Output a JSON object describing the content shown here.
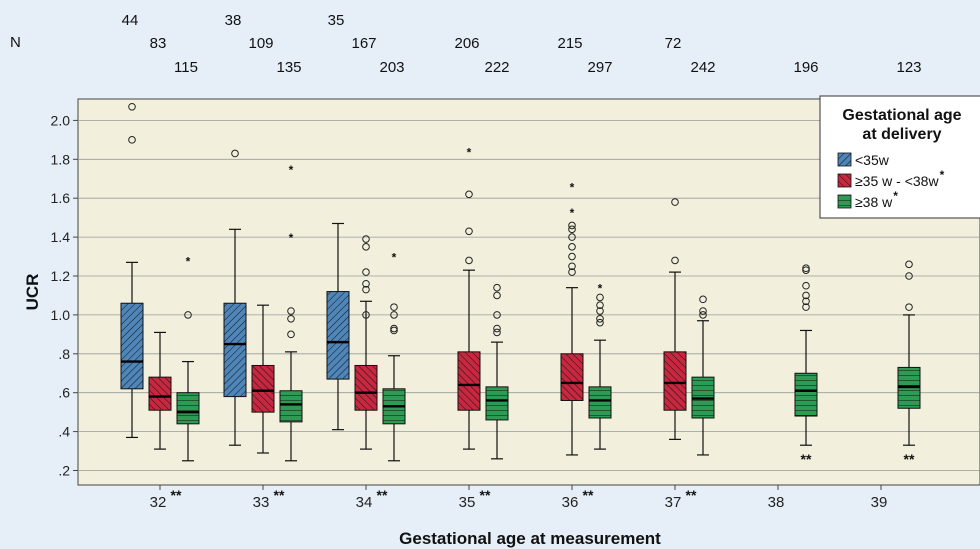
{
  "colors": {
    "page_bg": "#e6eff8",
    "plot_bg": "#f2f0dc",
    "grid": "#9a9a9a",
    "blue": "#4f86b9",
    "red": "#c8283f",
    "green": "#2e9b54"
  },
  "counts_label": "N",
  "counts": [
    {
      "week": "32",
      "values": [
        "44",
        "83",
        "115"
      ]
    },
    {
      "week": "33",
      "values": [
        "38",
        "109",
        "135"
      ]
    },
    {
      "week": "34",
      "values": [
        "35",
        "167",
        "203"
      ]
    },
    {
      "week": "35",
      "values": [
        "206",
        "222"
      ]
    },
    {
      "week": "36",
      "values": [
        "215",
        "297"
      ]
    },
    {
      "week": "37",
      "values": [
        "72",
        "242"
      ]
    },
    {
      "week": "38",
      "values": [
        "196"
      ]
    },
    {
      "week": "39",
      "values": [
        "123"
      ]
    }
  ],
  "chart_data": {
    "type": "boxplot",
    "xlabel": "Gestational age at measurement",
    "ylabel": "UCR",
    "ylim": [
      0.15,
      2.1
    ],
    "yticks": [
      {
        "v": 2.0,
        "label": "2.0"
      },
      {
        "v": 1.8,
        "label": "1.8"
      },
      {
        "v": 1.6,
        "label": "1.6"
      },
      {
        "v": 1.4,
        "label": "1.4"
      },
      {
        "v": 1.2,
        "label": "1.2"
      },
      {
        "v": 1.0,
        "label": "1.0"
      },
      {
        "v": 0.8,
        "label": ".8"
      },
      {
        "v": 0.6,
        "label": ".6"
      },
      {
        "v": 0.4,
        "label": ".4"
      },
      {
        "v": 0.2,
        "label": ".2"
      }
    ],
    "categories": [
      {
        "label": "32",
        "stars": "**"
      },
      {
        "label": "33",
        "stars": "**"
      },
      {
        "label": "34",
        "stars": "**"
      },
      {
        "label": "35",
        "stars": "**"
      },
      {
        "label": "36",
        "stars": "**"
      },
      {
        "label": "37",
        "stars": "**"
      },
      {
        "label": "38",
        "stars": ""
      },
      {
        "label": "39",
        "stars": ""
      }
    ],
    "grid": true,
    "legend": {
      "title_lines": [
        "Gestational age",
        "at delivery"
      ],
      "position": "top-right",
      "items": [
        {
          "key": "blue",
          "label": "<35w",
          "stars": ""
        },
        {
          "key": "red",
          "label": "≥35 w - <38w",
          "stars": "*"
        },
        {
          "key": "green",
          "label": "≥38 w",
          "stars": "*"
        }
      ]
    },
    "series": [
      {
        "name": "<35w",
        "key": "blue",
        "boxes": [
          {
            "cat": 0,
            "lw": 0.37,
            "q1": 0.62,
            "med": 0.76,
            "q3": 1.06,
            "uw": 1.27,
            "outliers": [
              2.07,
              1.9
            ],
            "extremes": []
          },
          {
            "cat": 1,
            "lw": 0.33,
            "q1": 0.58,
            "med": 0.85,
            "q3": 1.06,
            "uw": 1.44,
            "outliers": [
              1.83
            ],
            "extremes": []
          },
          {
            "cat": 2,
            "lw": 0.41,
            "q1": 0.67,
            "med": 0.86,
            "q3": 1.12,
            "uw": 1.47,
            "outliers": [],
            "extremes": []
          }
        ]
      },
      {
        "name": "≥35 w - <38w",
        "key": "red",
        "boxes": [
          {
            "cat": 0,
            "lw": 0.31,
            "q1": 0.51,
            "med": 0.58,
            "q3": 0.68,
            "uw": 0.91,
            "outliers": [],
            "extremes": []
          },
          {
            "cat": 1,
            "lw": 0.29,
            "q1": 0.5,
            "med": 0.61,
            "q3": 0.74,
            "uw": 1.05,
            "outliers": [],
            "extremes": []
          },
          {
            "cat": 2,
            "lw": 0.31,
            "q1": 0.51,
            "med": 0.6,
            "q3": 0.74,
            "uw": 1.07,
            "outliers": [
              1.39,
              1.35,
              1.22,
              1.16,
              1.13,
              1.0
            ],
            "extremes": []
          },
          {
            "cat": 3,
            "lw": 0.31,
            "q1": 0.51,
            "med": 0.64,
            "q3": 0.81,
            "uw": 1.23,
            "outliers": [
              1.62,
              1.43,
              1.28
            ],
            "extremes": [
              1.85
            ]
          },
          {
            "cat": 4,
            "lw": 0.28,
            "q1": 0.56,
            "med": 0.65,
            "q3": 0.8,
            "uw": 1.14,
            "outliers": [
              1.46,
              1.44,
              1.4,
              1.35,
              1.3,
              1.25,
              1.22
            ],
            "extremes": [
              1.67,
              1.54
            ]
          },
          {
            "cat": 5,
            "lw": 0.36,
            "q1": 0.51,
            "med": 0.65,
            "q3": 0.81,
            "uw": 1.22,
            "outliers": [
              1.58,
              1.28
            ],
            "extremes": []
          }
        ]
      },
      {
        "name": "≥38 w",
        "key": "green",
        "boxes": [
          {
            "cat": 0,
            "lw": 0.25,
            "q1": 0.44,
            "med": 0.5,
            "q3": 0.6,
            "uw": 0.76,
            "outliers": [
              1.0
            ],
            "extremes": [
              1.29
            ]
          },
          {
            "cat": 1,
            "lw": 0.25,
            "q1": 0.45,
            "med": 0.54,
            "q3": 0.61,
            "uw": 0.81,
            "outliers": [
              1.02,
              0.98,
              0.9
            ],
            "extremes": [
              1.76,
              1.41
            ]
          },
          {
            "cat": 2,
            "lw": 0.25,
            "q1": 0.44,
            "med": 0.53,
            "q3": 0.62,
            "uw": 0.79,
            "outliers": [
              1.04,
              1.0,
              0.93,
              0.92
            ],
            "extremes": [
              1.31
            ]
          },
          {
            "cat": 3,
            "lw": 0.26,
            "q1": 0.46,
            "med": 0.56,
            "q3": 0.63,
            "uw": 0.86,
            "outliers": [
              1.14,
              1.1,
              1.0,
              0.93,
              0.91
            ],
            "extremes": []
          },
          {
            "cat": 4,
            "lw": 0.31,
            "q1": 0.47,
            "med": 0.56,
            "q3": 0.63,
            "uw": 0.87,
            "outliers": [
              1.09,
              1.05,
              1.02,
              0.98,
              0.96
            ],
            "extremes": [
              1.15
            ]
          },
          {
            "cat": 5,
            "lw": 0.28,
            "q1": 0.47,
            "med": 0.57,
            "q3": 0.68,
            "uw": 0.97,
            "outliers": [
              1.08,
              1.02,
              1.0
            ],
            "extremes": []
          },
          {
            "cat": 6,
            "lw": 0.33,
            "q1": 0.48,
            "med": 0.61,
            "q3": 0.7,
            "uw": 0.92,
            "outliers": [
              1.24,
              1.23,
              1.15,
              1.1,
              1.07,
              1.04
            ],
            "extremes": [],
            "bottom_stars": "**"
          },
          {
            "cat": 7,
            "lw": 0.33,
            "q1": 0.52,
            "med": 0.63,
            "q3": 0.73,
            "uw": 1.0,
            "outliers": [
              1.26,
              1.2,
              1.04
            ],
            "extremes": [],
            "bottom_stars": "**"
          }
        ]
      }
    ]
  }
}
